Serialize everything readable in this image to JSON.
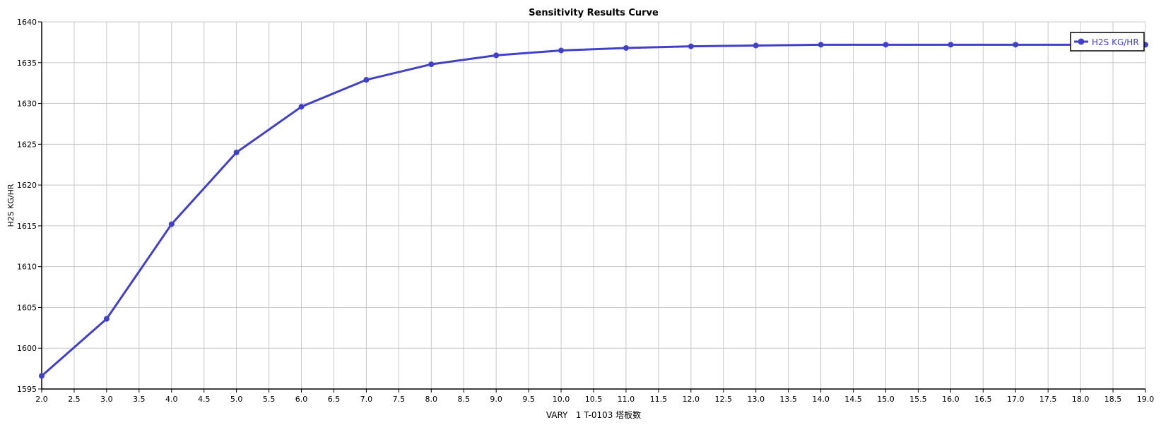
{
  "chart_data": {
    "type": "line",
    "title": "Sensitivity Results Curve",
    "xlabel": "VARY   1 T-0103 塔板数",
    "ylabel": "H2S KG/HR",
    "xlim": [
      2.0,
      19.0
    ],
    "ylim": [
      1595,
      1640
    ],
    "xticks": [
      "2.0",
      "2.5",
      "3.0",
      "3.5",
      "4.0",
      "4.5",
      "5.0",
      "5.5",
      "6.0",
      "6.5",
      "7.0",
      "7.5",
      "8.0",
      "8.5",
      "9.0",
      "9.5",
      "10.0",
      "10.5",
      "11.0",
      "11.5",
      "12.0",
      "12.5",
      "13.0",
      "13.5",
      "14.0",
      "14.5",
      "15.0",
      "15.5",
      "16.0",
      "16.5",
      "17.0",
      "17.5",
      "18.0",
      "18.5",
      "19.0"
    ],
    "yticks": [
      "1595",
      "1600",
      "1605",
      "1610",
      "1615",
      "1620",
      "1625",
      "1630",
      "1635",
      "1640"
    ],
    "grid": true,
    "legend_position": "top-right",
    "series": [
      {
        "name": "H2S KG/HR",
        "color": "#4040c8",
        "x": [
          2,
          3,
          4,
          5,
          6,
          7,
          8,
          9,
          10,
          11,
          12,
          13,
          14,
          15,
          16,
          17,
          18,
          19
        ],
        "values": [
          1596.6,
          1603.6,
          1615.2,
          1624.0,
          1629.6,
          1632.9,
          1634.8,
          1635.9,
          1636.5,
          1636.8,
          1637.0,
          1637.1,
          1637.2,
          1637.2,
          1637.2,
          1637.2,
          1637.2,
          1637.2
        ]
      }
    ]
  }
}
